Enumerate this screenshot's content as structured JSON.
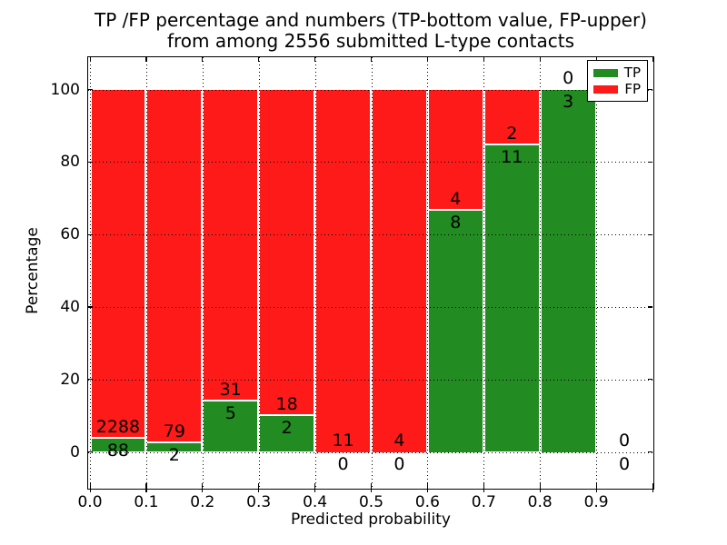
{
  "chart_data": {
    "type": "bar",
    "subtype": "stacked-100-percent",
    "title_line1": "TP /FP percentage and numbers (TP-bottom value, FP-upper)",
    "title_line2": "from among 2556 submitted L-type contacts",
    "xlabel": "Predicted probability",
    "ylabel": "Percentage",
    "total_submitted_contacts": 2556,
    "bin_width": 0.1,
    "categories": [
      "0.0-0.1",
      "0.1-0.2",
      "0.2-0.3",
      "0.3-0.4",
      "0.4-0.5",
      "0.5-0.6",
      "0.6-0.7",
      "0.7-0.8",
      "0.8-0.9",
      "0.9-1.0"
    ],
    "series": [
      {
        "name": "TP",
        "color": "#228B22",
        "values": [
          88,
          2,
          5,
          2,
          0,
          0,
          8,
          11,
          3,
          0
        ]
      },
      {
        "name": "FP",
        "color": "#FF1A1A",
        "values": [
          2288,
          79,
          31,
          18,
          11,
          4,
          4,
          2,
          0,
          0
        ]
      }
    ],
    "label_rule": "TP count printed below segment boundary, FP count printed above it",
    "xticks": [
      "0.0",
      "0.1",
      "0.2",
      "0.3",
      "0.4",
      "0.5",
      "0.6",
      "0.7",
      "0.8",
      "0.9"
    ],
    "yticks": [
      "0",
      "20",
      "40",
      "60",
      "80",
      "100"
    ],
    "xlim": [
      0.0,
      1.0
    ],
    "ylim": [
      -10,
      110
    ],
    "grid": "dotted",
    "legend": {
      "position": "upper right",
      "entries": [
        "TP",
        "FP"
      ]
    }
  }
}
